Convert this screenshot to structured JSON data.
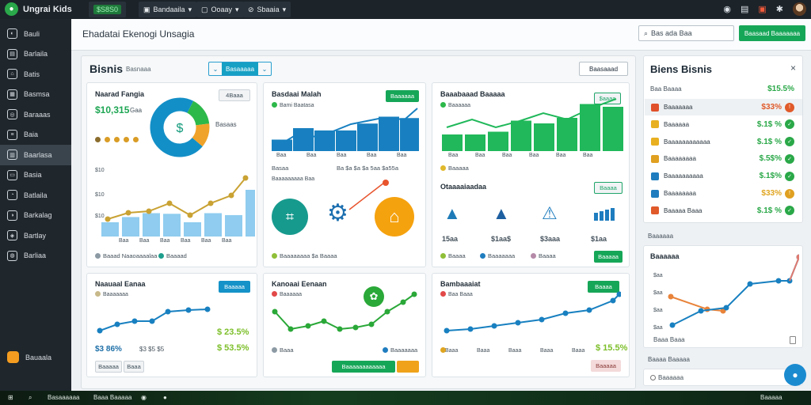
{
  "app": {
    "title": "Ungrai Kids",
    "badge": "$S8S0"
  },
  "topbar": {
    "menu1": "Bandaaila",
    "menu2": "Ooaay",
    "menu3": "Sbaaia"
  },
  "sidebar": {
    "items": [
      "Bauli",
      "Barlaila",
      "Batis",
      "Basmsa",
      "Baraaas",
      "Baia",
      "Baarlasa",
      "Basia",
      "Batlaila",
      "Barkalag",
      "Bartlay",
      "Barliaa"
    ],
    "active_index": 6,
    "bottom": "Bauaala"
  },
  "header": {
    "title": "Ehadatai Ekenogi Unsagia",
    "search_placeholder": "Bas ada Baa",
    "action": "Baasaad Baaaaaaa"
  },
  "main": {
    "title": "Bisnis",
    "subtitle": "Basnaaa",
    "segment": "Basaaaaa",
    "action": "Baasaaad"
  },
  "cards": {
    "c1": {
      "title": "Naarad Fangia",
      "value": "$10,315",
      "value_suffix": "Gaa",
      "legend": "Basaas",
      "bar_label_top": "$10",
      "footer_left": "Baaad Naaoaaaalaa",
      "footer_right": "Baaaad",
      "tag": "4Baaa",
      "y_ticks": [
        "$10",
        "$10",
        "$10"
      ],
      "x_ticks": [
        "Baa",
        "Baa",
        "Baa",
        "Baa",
        "Baa",
        "Baa"
      ]
    },
    "c2": {
      "title": "Basdaai Malah",
      "tag": "Baaaaaa",
      "legend": "Bami Baatasa",
      "footer_left": "Basaa",
      "footer_right": "Ba $a $a $a 5aa $a55a",
      "x_ticks": [
        "Baa",
        "Baa",
        "Baa",
        "Baa",
        "Baa"
      ],
      "sub_title": "Baaaaaaaaa Baa",
      "sub_foot": "Baaaaaaaa $a Baaaa"
    },
    "c3": {
      "title": "Baaabaaad Baaaaa",
      "tag": "$aaaa",
      "legend": "Baaaaaa",
      "x_ticks": [
        "Baa",
        "Baa",
        "Baa",
        "Baa",
        "Baa",
        "Baa"
      ],
      "foot": "Baaaaa",
      "sub_title": "Otaaaaiaadaa",
      "sub_tag": "Baaaa",
      "values": [
        "15aa",
        "$1aa$",
        "$3aaa",
        "$1aa"
      ],
      "legend2": [
        "Baaaa",
        "Baaaaaaa",
        "Baaaa"
      ],
      "btn": "Baaaaa"
    },
    "c4": {
      "title": "Naauaal Eanaa",
      "legend": "Baaaaaaa",
      "tag": "Baaaaa",
      "val1": "$ 23.5%",
      "val2": "$ 53.5%",
      "left_val": "$3 86%",
      "mid_val": "$3 $5 $5",
      "pill1": "Baaaaa",
      "pill2": "Baaa"
    },
    "c5": {
      "title": "Kanoaai Eenaan",
      "legend": "Baaaaaa",
      "foot_left": "Baaa",
      "foot_right": "Baaaaaaa",
      "btn": "Baaaaaaaaaaaa"
    },
    "c6": {
      "title": "Bambaaaiat",
      "legend": "Baa Baaa",
      "tag": "Baaaa",
      "val": "$ 15.5%",
      "x_ticks": [
        "Baaa",
        "Baaa",
        "Baaa",
        "Baaa",
        "Baaa"
      ],
      "btn": "Baaaaa"
    }
  },
  "right_panel": {
    "title": "Biens Bisnis",
    "sub_label": "Baa Baaaa",
    "sub_value": "$15.5%",
    "rows": [
      {
        "label": "Baaaaaaa",
        "value": "$33%",
        "vcolor": "#e05a2a"
      },
      {
        "label": "Baaaaaa",
        "value": "$.1$ %",
        "vcolor": "#2aa848"
      },
      {
        "label": "Baaaaaaaaaaaa",
        "value": "$.1$ %",
        "vcolor": "#2aa848"
      },
      {
        "label": "Baaaaaaaa",
        "value": "$.5$%",
        "vcolor": "#2aa848"
      },
      {
        "label": "Baaaaaaaaaa",
        "value": "$.1$%",
        "vcolor": "#2aa848"
      },
      {
        "label": "Baaaaaaaa",
        "value": "$33%",
        "vcolor": "#e0a520"
      },
      {
        "label": "Baaaaa Baaa",
        "value": "$.1$ %",
        "vcolor": "#2aa848"
      }
    ]
  },
  "right_mid": {
    "label": "Baaaaaa",
    "title": "Baaaaaa",
    "y_ticks": [
      "$aa",
      "$aa",
      "$aa",
      "$aa"
    ],
    "foot": "Baaa Baaa"
  },
  "right_bottom": {
    "label": "Baaaa Baaaaa",
    "item": "Baaaaaa"
  },
  "taskbar": {
    "items": [
      "Basaaaaaa",
      "Baaa Baaaaa"
    ],
    "time": "Baaaaa"
  }
}
